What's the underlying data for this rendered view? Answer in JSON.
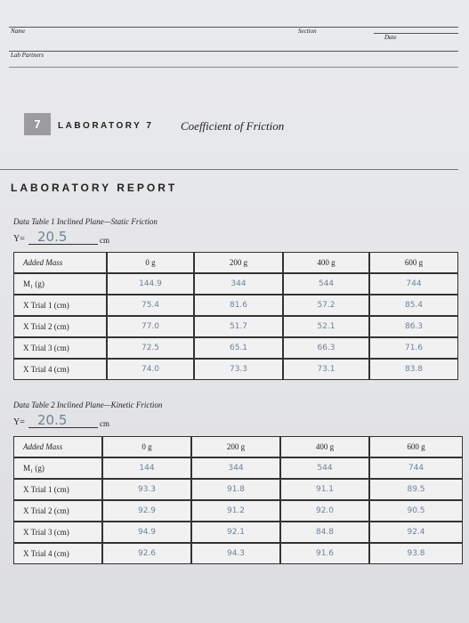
{
  "header": {
    "name": "Name",
    "section": "Section",
    "date": "Date",
    "lab_partners": "Lab Partners"
  },
  "chapter": {
    "number": "7",
    "title": "LABORATORY 7",
    "subtitle": "Coefficient of Friction"
  },
  "report_title": "LABORATORY REPORT",
  "tables": [
    {
      "title": "Data Table 1 Inclined Plane—Static Friction",
      "y_label": "Y=",
      "y_value": "20.5",
      "y_unit": "cm",
      "columns": [
        "Added Mass",
        "0 g",
        "200 g",
        "400 g",
        "600 g"
      ],
      "rows": [
        [
          "M₁ (g)",
          "144.9",
          "344",
          "544",
          "744"
        ],
        [
          "X Trial 1 (cm)",
          "75.4",
          "81.6",
          "57.2",
          "85.4"
        ],
        [
          "X Trial 2 (cm)",
          "77.0",
          "51.7",
          "52.1",
          "86.3"
        ],
        [
          "X Trial 3 (cm)",
          "72.5",
          "65.1",
          "66.3",
          "71.6"
        ],
        [
          "X Trial 4 (cm)",
          "74.0",
          "73.3",
          "73.1",
          "83.8"
        ]
      ]
    },
    {
      "title": "Data Table 2 Inclined Plane—Kinetic Friction",
      "y_label": "Y=",
      "y_value": "20.5",
      "y_unit": "cm",
      "columns": [
        "Added Mass",
        "0 g",
        "200 g",
        "400 g",
        "600 g"
      ],
      "rows": [
        [
          "M₁ (g)",
          "144",
          "344",
          "544",
          "744"
        ],
        [
          "X Trial 1 (cm)",
          "93.3",
          "91.8",
          "91.1",
          "89.5"
        ],
        [
          "X Trial 2 (cm)",
          "92.9",
          "91.2",
          "92.0",
          "90.5"
        ],
        [
          "X Trial 3 (cm)",
          "94.9",
          "92.1",
          "84.8",
          "92.4"
        ],
        [
          "X Trial 4 (cm)",
          "92.6",
          "94.3",
          "91.6",
          "93.8"
        ]
      ]
    }
  ]
}
